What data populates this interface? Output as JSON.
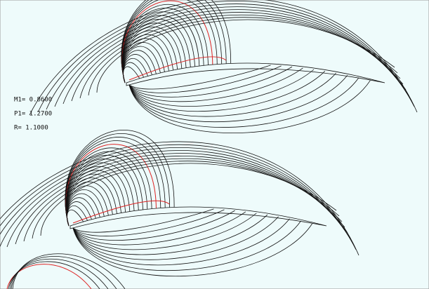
{
  "annotations": {
    "lines": [
      "M1= 0.8600",
      "P1= 1.2700",
      "R= 1.1000"
    ]
  }
}
